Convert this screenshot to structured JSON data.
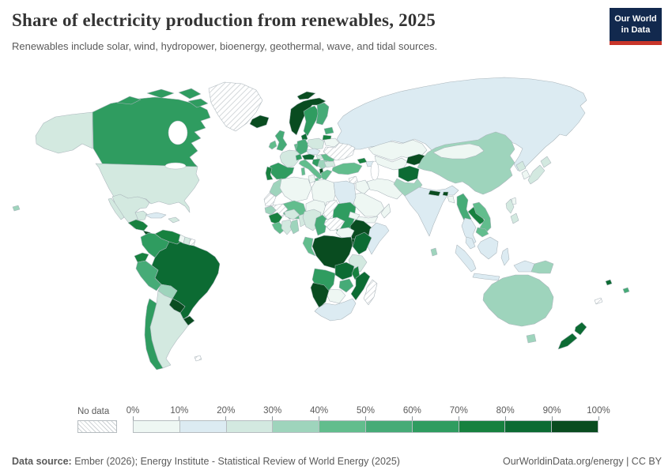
{
  "header": {
    "title": "Share of electricity production from renewables, 2025",
    "subtitle": "Renewables include solar, wind, hydropower, bioenergy, geothermal, wave, and tidal sources.",
    "logo": {
      "line1": "Our World",
      "line2": "in Data",
      "bg_color": "#12294e",
      "accent_color": "#c8352a"
    }
  },
  "legend": {
    "no_data_label": "No data",
    "tick_labels": [
      "0%",
      "10%",
      "20%",
      "30%",
      "40%",
      "50%",
      "60%",
      "70%",
      "80%",
      "90%",
      "100%"
    ]
  },
  "scale": {
    "thresholds": [
      0,
      10,
      20,
      30,
      40,
      50,
      60,
      70,
      80,
      90,
      100
    ],
    "colors": [
      "#eef7f3",
      "#dcebf2",
      "#d3e9e0",
      "#9ed4bc",
      "#62bd8d",
      "#46ab77",
      "#2f9c60",
      "#17813f",
      "#0c6b33",
      "#094c20"
    ],
    "hatch_line_color": "#c9ced1",
    "border_color": "#a9b4ba"
  },
  "chart_data": {
    "type": "choropleth",
    "title": "Share of electricity production from renewables",
    "year": "2025",
    "unit": "%",
    "values": {
      "usa": 23,
      "canada": 65,
      "greenland": null,
      "iceland": 100,
      "mexico": 22,
      "cuba": 12,
      "hispaniola": 25,
      "central_america_north": 72,
      "central_america_south": 92,
      "hawaii": 32,
      "colombia": 62,
      "venezuela": 72,
      "guyana": 7,
      "suriname": 25,
      "french_guiana": null,
      "ecuador": 74,
      "peru": 58,
      "brazil": 88,
      "bolivia": 33,
      "paraguay": 100,
      "uruguay": 94,
      "argentina": 28,
      "chile": 66,
      "falkland_islands": null,
      "norway": 98,
      "sweden": 69,
      "finland": 55,
      "denmark": 82,
      "estonia_latvia": 55,
      "lithuania": 72,
      "uk": 50,
      "ireland": 42,
      "france": 27,
      "spain": 62,
      "portugal": 76,
      "belgium_netherlands": 45,
      "germany": 55,
      "switzerland": 62,
      "austria": 82,
      "czechia_slovakia": 18,
      "poland": 28,
      "hungary": 28,
      "italy": 42,
      "slovenia_croatia": 65,
      "bosnia_serbia": 35,
      "albania": 97,
      "greece": 48,
      "romania": 45,
      "bulgaria": 28,
      "belarus": 4,
      "ukraine": null,
      "russia": 18,
      "turkey": 42,
      "georgia": 75,
      "azerbaijan_armenia": 12,
      "syria": null,
      "iraq": 8,
      "israel_jordan": 12,
      "saudi_arabia": 3,
      "yemen": 2,
      "oman": 5,
      "iran": 7,
      "kazakhstan": 8,
      "uzbekistan_turkmenistan": 5,
      "kyrgyzstan_tajikistan": 92,
      "afghanistan": 86,
      "pakistan": 30,
      "india": 19,
      "nepal": 95,
      "bhutan": 100,
      "bangladesh": 2,
      "sri_lanka": 35,
      "myanmar": 55,
      "china": 34,
      "mongolia": 8,
      "north_korea": 25,
      "south_korea": 9,
      "japan": 24,
      "taiwan": 9,
      "laos": 72,
      "thailand": 15,
      "vietnam": 42,
      "cambodia": 48,
      "malaysia": 18,
      "indonesia": 14,
      "philippines": 28,
      "papua_new_guinea": 35,
      "australia": 36,
      "new_zealand": 88,
      "new_caledonia": null,
      "vanuatu": 88,
      "fiji": 55,
      "morocco": 38,
      "algeria": 1,
      "tunisia": 3,
      "libya": 3,
      "egypt": 12,
      "western_sahara": null,
      "mauritania": null,
      "mali": 48,
      "niger": 8,
      "chad": null,
      "sudan": 62,
      "eritrea": 2,
      "ethiopia": 100,
      "somalia": 12,
      "senegal": 33,
      "guinea": 75,
      "sierra_leone_liberia": 42,
      "ivory_coast": 22,
      "ghana": 33,
      "burkina_faso": 25,
      "togo_benin": 22,
      "nigeria": 22,
      "cameroon": 55,
      "central_african_republic": null,
      "south_sudan": 2,
      "uganda": 90,
      "kenya": 86,
      "drc": 100,
      "gabon_congo": 40,
      "tanzania": 28,
      "angola": 68,
      "zambia": 88,
      "malawi": 78,
      "mozambique": 80,
      "zimbabwe": 52,
      "botswana": 2,
      "namibia": 95,
      "south_africa": 12,
      "madagascar": null
    }
  },
  "footer": {
    "sources_label": "Data source:",
    "sources_text": " Ember (2026); Energy Institute - Statistical Review of World Energy (2025)",
    "right_text": "OurWorldinData.org/energy | CC BY"
  }
}
